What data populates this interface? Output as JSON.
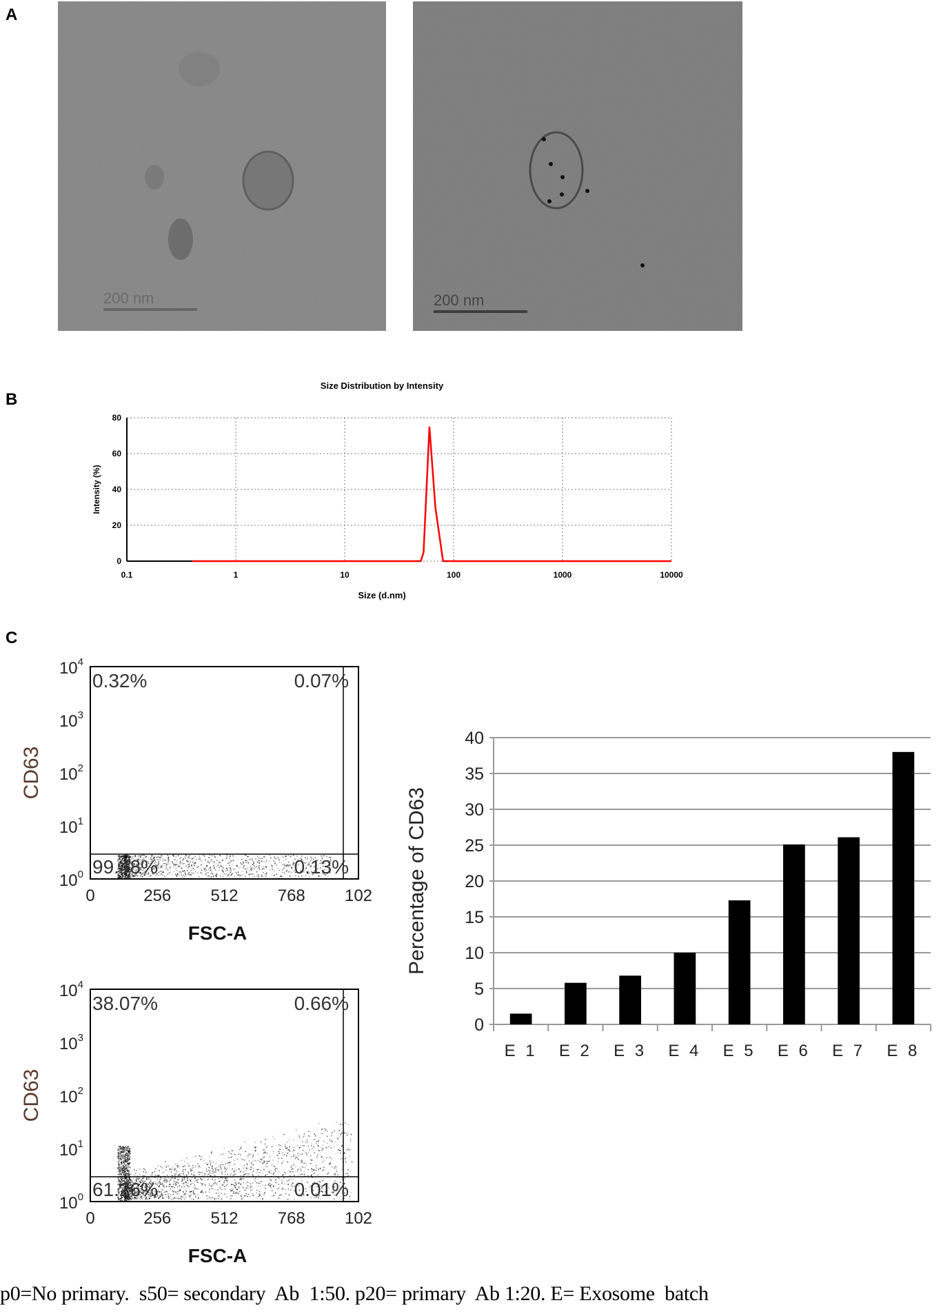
{
  "panels": {
    "a": "A",
    "b": "B",
    "c": "C"
  },
  "tem": {
    "left_scale": "200 nm",
    "right_scale": "200 nm"
  },
  "chart_data": [
    {
      "type": "line",
      "title": "Size Distribution by Intensity",
      "xlabel": "Size (d.nm)",
      "ylabel": "Intensity (%)",
      "xscale": "log",
      "xlim": [
        0.1,
        10000
      ],
      "ylim": [
        0,
        80
      ],
      "xticks": [
        "0.1",
        "1",
        "10",
        "100",
        "1000",
        "10000"
      ],
      "yticks": [
        "0",
        "20",
        "40",
        "60",
        "80"
      ],
      "grid": true,
      "line_color": "#ff0000",
      "x": [
        0.4,
        50,
        53,
        60,
        68,
        80,
        10000
      ],
      "y": [
        0,
        0,
        5,
        75,
        30,
        0,
        0
      ]
    },
    {
      "type": "scatter",
      "xlabel": "FSC-A",
      "ylabel": "CD63",
      "yscale": "log",
      "xticks": [
        "0",
        "256",
        "512",
        "768",
        "102"
      ],
      "yticks": [
        "0",
        "1",
        "2",
        "3",
        "4"
      ],
      "quadrants": {
        "upper_left": "0.32%",
        "upper_right": "0.07%",
        "lower_left": "99.48%",
        "lower_right": "0.13%"
      }
    },
    {
      "type": "scatter",
      "xlabel": "FSC-A",
      "ylabel": "CD63",
      "yscale": "log",
      "xticks": [
        "0",
        "256",
        "512",
        "768",
        "102"
      ],
      "yticks": [
        "0",
        "1",
        "2",
        "3",
        "4"
      ],
      "quadrants": {
        "upper_left": "38.07%",
        "upper_right": "0.66%",
        "lower_left": "61.26%",
        "lower_right": "0.01%"
      }
    },
    {
      "type": "bar",
      "categories": [
        "E 1",
        "E 2",
        "E 3",
        "E 4",
        "E 5",
        "E 6",
        "E 7",
        "E 8"
      ],
      "values": [
        1.5,
        5.8,
        6.8,
        10,
        17.3,
        25.1,
        26.1,
        38
      ],
      "ylabel": "Percentage of CD63",
      "ylim": [
        0,
        40
      ],
      "yticks": [
        "0",
        "5",
        "10",
        "15",
        "20",
        "25",
        "30",
        "35",
        "40"
      ],
      "grid": true,
      "bar_color": "#000000"
    }
  ],
  "caption": "p0=No primary.  s50= secondary  Ab  1:50. p20= primary  Ab 1:20. E= Exosome  batch"
}
